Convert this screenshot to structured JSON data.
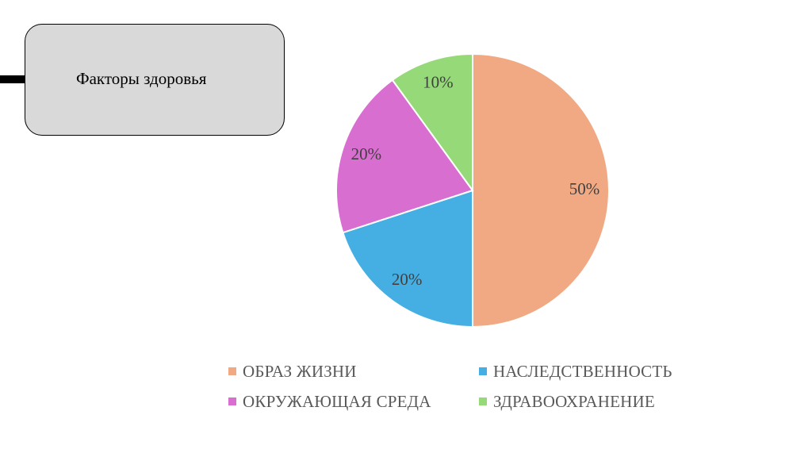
{
  "title_box": {
    "label": "Факторы здоровья"
  },
  "chart_data": {
    "type": "pie",
    "title": "",
    "slices": [
      {
        "name": "ОБРАЗ ЖИЗНИ",
        "value": 50,
        "label": "50%",
        "color": "#f0a982"
      },
      {
        "name": "НАСЛЕДСТВЕННОСТЬ",
        "value": 20,
        "label": "20%",
        "color": "#45aee3"
      },
      {
        "name": "ОКРУЖАЮЩАЯ СРЕДА",
        "value": 20,
        "label": "20%",
        "color": "#d86ecf"
      },
      {
        "name": "ЗДРАВООХРАНЕНИЕ",
        "value": 10,
        "label": "10%",
        "color": "#95d978"
      }
    ],
    "start_angle_deg": 0,
    "direction": "clockwise",
    "legend_position": "bottom"
  }
}
